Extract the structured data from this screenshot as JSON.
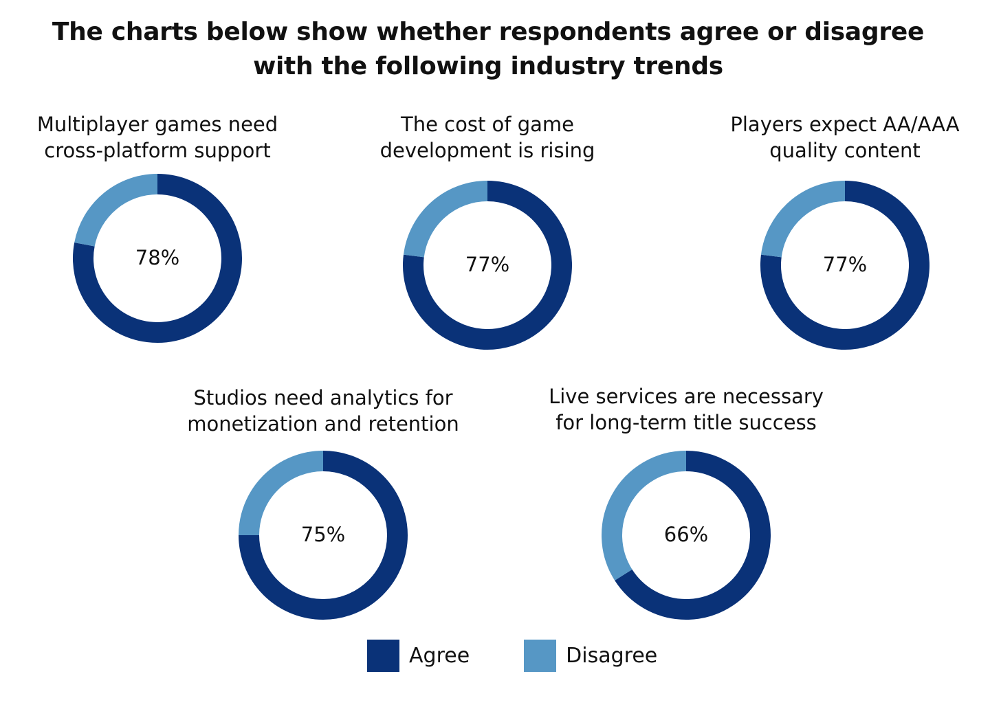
{
  "title_lines": [
    "The charts below show whether respondents agree or disagree",
    "with the following industry trends"
  ],
  "colors": {
    "agree": "#0a3278",
    "disagree": "#5697c5"
  },
  "legend": [
    {
      "label": "Agree",
      "color": "#0a3278"
    },
    {
      "label": "Disagree",
      "color": "#5697c5"
    }
  ],
  "chart_data": [
    {
      "type": "pie",
      "title_lines": [
        "Multiplayer games need",
        "cross-platform support"
      ],
      "agree": 78,
      "disagree": 22,
      "center_label": "78%"
    },
    {
      "type": "pie",
      "title_lines": [
        "The cost of game",
        "development is rising"
      ],
      "agree": 77,
      "disagree": 23,
      "center_label": "77%"
    },
    {
      "type": "pie",
      "title_lines": [
        "Players expect AA/AAA",
        "quality content"
      ],
      "agree": 77,
      "disagree": 23,
      "center_label": "77%"
    },
    {
      "type": "pie",
      "title_lines": [
        "Studios need analytics for",
        "monetization and retention"
      ],
      "agree": 75,
      "disagree": 25,
      "center_label": "75%"
    },
    {
      "type": "pie",
      "title_lines": [
        "Live services are necessary",
        "for long-term title success"
      ],
      "agree": 66,
      "disagree": 34,
      "center_label": "66%"
    }
  ]
}
